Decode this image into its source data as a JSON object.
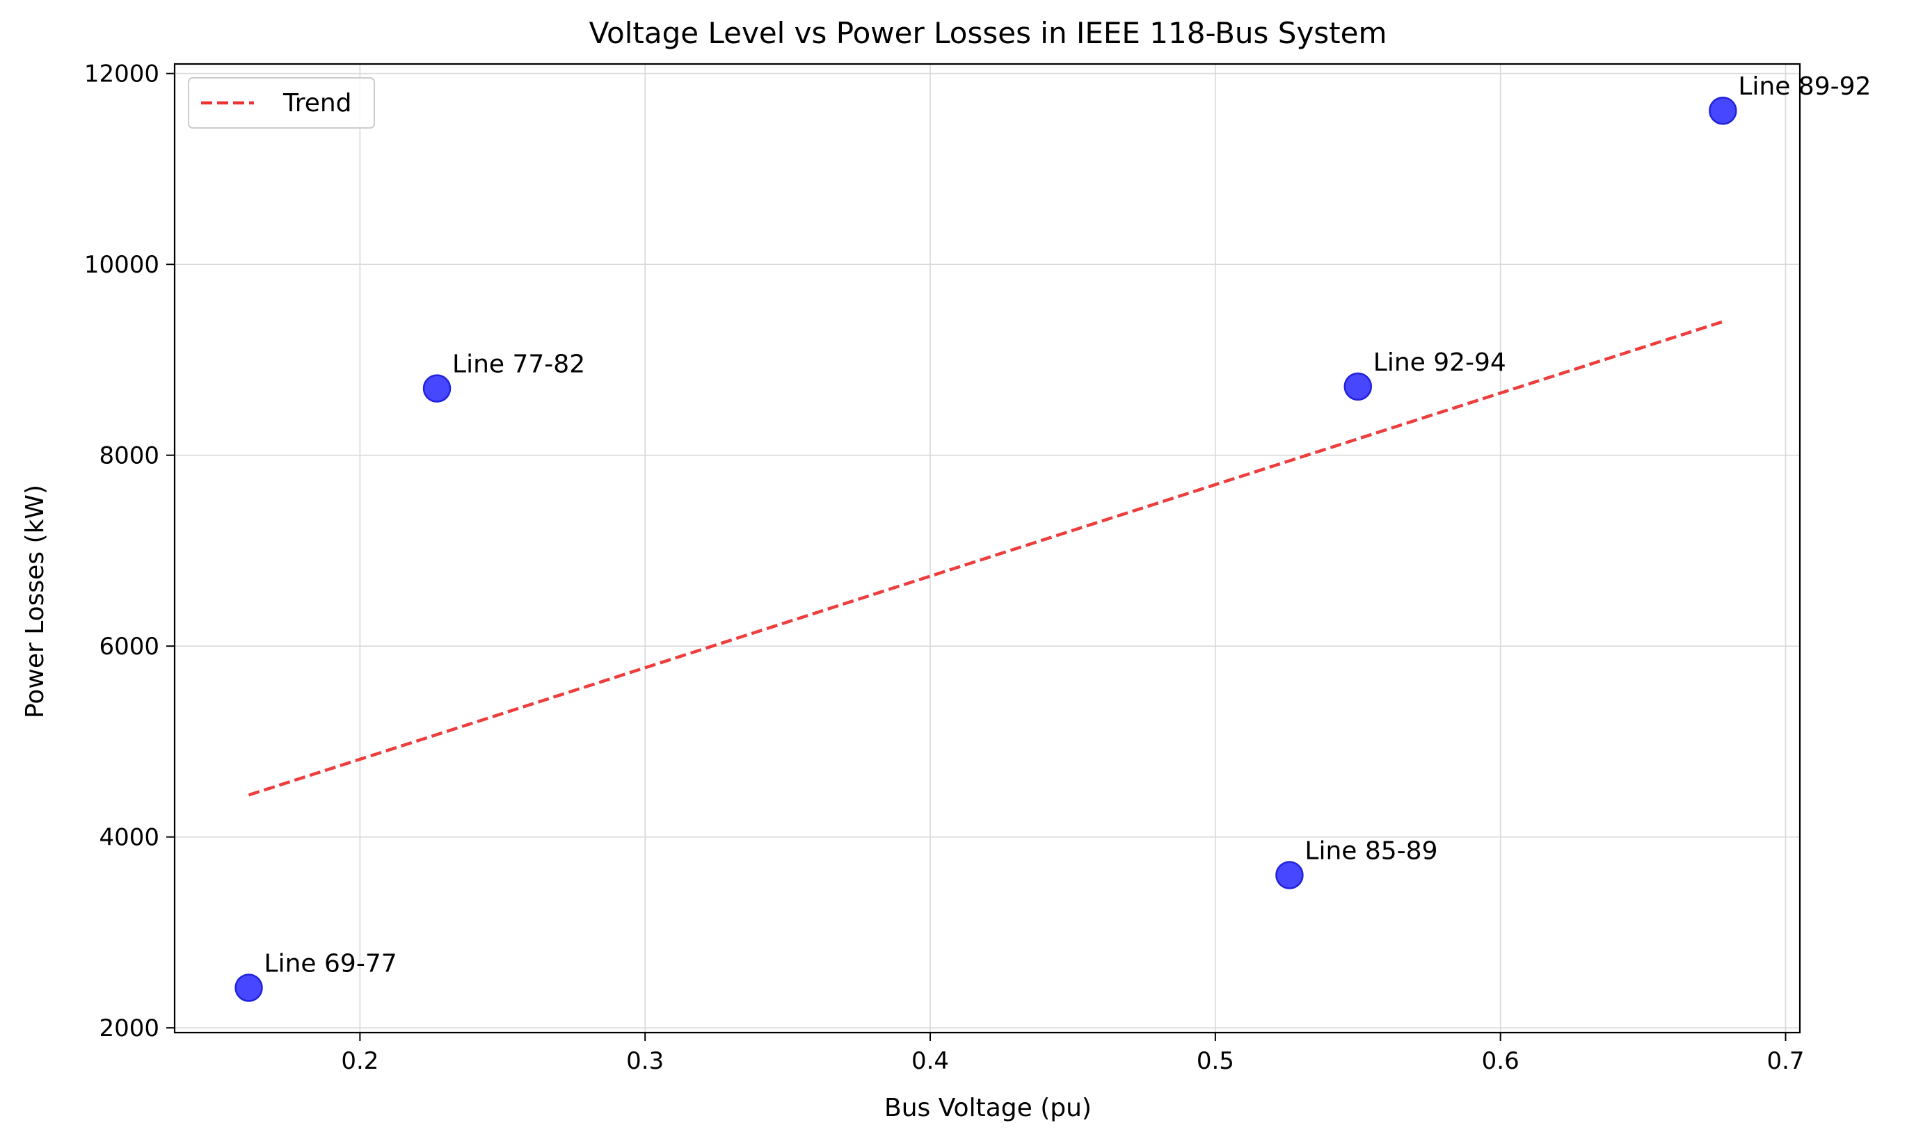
{
  "chart_data": {
    "type": "scatter",
    "title": "Voltage Level vs Power Losses in IEEE 118-Bus System",
    "xlabel": "Bus Voltage (pu)",
    "ylabel": "Power Losses (kW)",
    "xlim": [
      0.135,
      0.705
    ],
    "ylim": [
      1950,
      12100
    ],
    "xticks": [
      0.2,
      0.3,
      0.4,
      0.5,
      0.6,
      0.7
    ],
    "xtick_labels": [
      "0.2",
      "0.3",
      "0.4",
      "0.5",
      "0.6",
      "0.7"
    ],
    "yticks": [
      2000,
      4000,
      6000,
      8000,
      10000,
      12000
    ],
    "ytick_labels": [
      "2000",
      "4000",
      "6000",
      "8000",
      "10000",
      "12000"
    ],
    "grid": true,
    "legend": {
      "position": "upper-left",
      "entries": [
        {
          "label": "Trend",
          "style": "dashed-line",
          "color": "#ee3333"
        }
      ]
    },
    "points": [
      {
        "label": "Line 69-77",
        "x": 0.161,
        "y": 2420
      },
      {
        "label": "Line 77-82",
        "x": 0.227,
        "y": 8700
      },
      {
        "label": "Line 85-89",
        "x": 0.526,
        "y": 3600
      },
      {
        "label": "Line 92-94",
        "x": 0.55,
        "y": 8720
      },
      {
        "label": "Line 89-92",
        "x": 0.678,
        "y": 11610
      }
    ],
    "trend": {
      "x": [
        0.161,
        0.678
      ],
      "y": [
        4440,
        9400
      ]
    },
    "colors": {
      "points": "#0000ff",
      "point_edge": "#2222dd",
      "trend": "#ee3333",
      "grid": "#d9d9d9"
    }
  }
}
